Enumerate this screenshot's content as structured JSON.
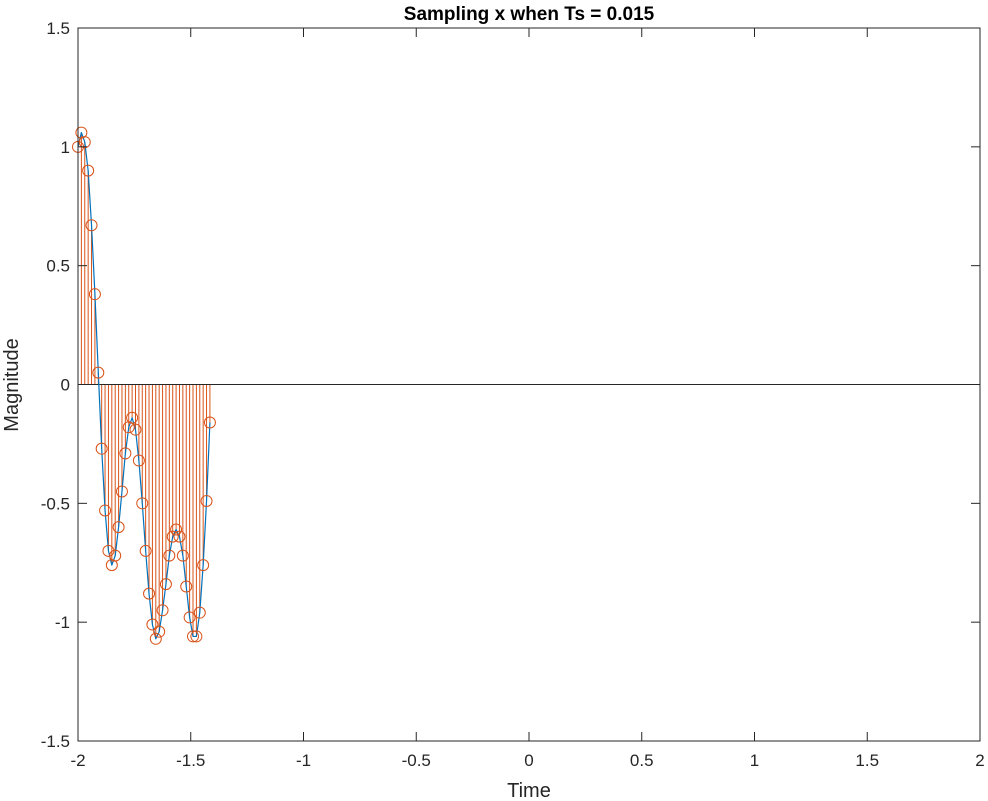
{
  "chart_data": {
    "type": "stem",
    "title": "Sampling x when Ts = 0.015",
    "xlabel": "Time",
    "ylabel": "Magnitude",
    "xlim": [
      -2,
      2
    ],
    "ylim": [
      -1.5,
      1.5
    ],
    "xticks": [
      -2,
      -1.5,
      -1,
      -0.5,
      0,
      0.5,
      1,
      1.5,
      2
    ],
    "xtick_labels": [
      "-2",
      "-1.5",
      "-1",
      "-0.5",
      "0",
      "0.5",
      "1",
      "1.5",
      "2"
    ],
    "yticks": [
      -1.5,
      -1,
      -0.5,
      0,
      0.5,
      1,
      1.5
    ],
    "ytick_labels": [
      "-1.5",
      "-1",
      "-0.5",
      "0",
      "0.5",
      "1",
      "1.5"
    ],
    "grid": false,
    "sample_interval": 0.015,
    "colors": {
      "line": "#0072BD",
      "stem": "#D95319",
      "axis": "#262626"
    },
    "series": [
      {
        "style": "line",
        "x": [
          -2,
          -1.985,
          -1.97,
          -1.955,
          -1.94,
          -1.925,
          -1.91,
          -1.895,
          -1.88,
          -1.865,
          -1.85,
          -1.835,
          -1.82,
          -1.805,
          -1.79,
          -1.775,
          -1.76,
          -1.745,
          -1.73,
          -1.715,
          -1.7,
          -1.685,
          -1.67,
          -1.655,
          -1.64,
          -1.625,
          -1.61,
          -1.595,
          -1.58,
          -1.565,
          -1.55,
          -1.535,
          -1.52,
          -1.505,
          -1.49,
          -1.475,
          -1.46,
          -1.445,
          -1.43,
          -1.415
        ],
        "y": [
          1.0,
          1.06,
          1.02,
          0.9,
          0.67,
          0.38,
          0.05,
          -0.27,
          -0.53,
          -0.7,
          -0.76,
          -0.72,
          -0.6,
          -0.45,
          -0.29,
          -0.18,
          -0.14,
          -0.19,
          -0.32,
          -0.5,
          -0.7,
          -0.88,
          -1.01,
          -1.07,
          -1.04,
          -0.95,
          -0.84,
          -0.72,
          -0.64,
          -0.61,
          -0.64,
          -0.72,
          -0.85,
          -0.98,
          -1.06,
          -1.06,
          -0.96,
          -0.76,
          -0.49,
          -0.16
        ]
      },
      {
        "style": "stem",
        "x": [
          -2,
          -1.985,
          -1.97,
          -1.955,
          -1.94,
          -1.925,
          -1.91,
          -1.895,
          -1.88,
          -1.865,
          -1.85,
          -1.835,
          -1.82,
          -1.805,
          -1.79,
          -1.775,
          -1.76,
          -1.745,
          -1.73,
          -1.715,
          -1.7,
          -1.685,
          -1.67,
          -1.655,
          -1.64,
          -1.625,
          -1.61,
          -1.595,
          -1.58,
          -1.565,
          -1.55,
          -1.535,
          -1.52,
          -1.505,
          -1.49,
          -1.475,
          -1.46,
          -1.445,
          -1.43,
          -1.415
        ],
        "y": [
          1.0,
          1.06,
          1.02,
          0.9,
          0.67,
          0.38,
          0.05,
          -0.27,
          -0.53,
          -0.7,
          -0.76,
          -0.72,
          -0.6,
          -0.45,
          -0.29,
          -0.18,
          -0.14,
          -0.19,
          -0.32,
          -0.5,
          -0.7,
          -0.88,
          -1.01,
          -1.07,
          -1.04,
          -0.95,
          -0.84,
          -0.72,
          -0.64,
          -0.61,
          -0.64,
          -0.72,
          -0.85,
          -0.98,
          -1.06,
          -1.06,
          -0.96,
          -0.76,
          -0.49,
          -0.16
        ]
      }
    ]
  }
}
